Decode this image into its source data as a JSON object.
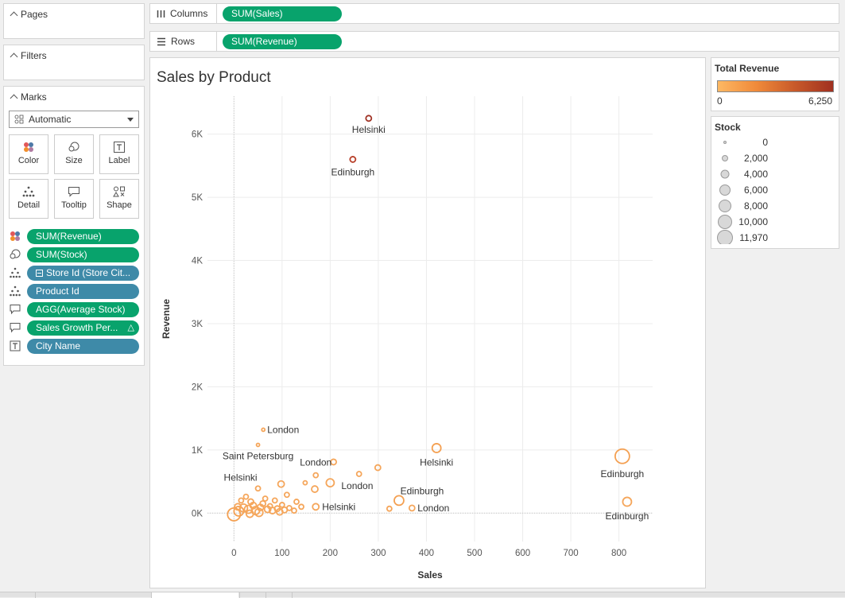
{
  "left_panel": {
    "pages_title": "Pages",
    "filters_title": "Filters",
    "marks_title": "Marks",
    "mark_type": "Automatic",
    "buttons": {
      "color": "Color",
      "size": "Size",
      "label": "Label",
      "detail": "Detail",
      "tooltip": "Tooltip",
      "shape": "Shape"
    },
    "pills": [
      {
        "icon": "color-icon",
        "text": "SUM(Revenue)",
        "kind": "green"
      },
      {
        "icon": "size-icon",
        "text": "SUM(Stock)",
        "kind": "green"
      },
      {
        "icon": "detail-icon",
        "text": "Store Id (Store Cit...",
        "kind": "blue"
      },
      {
        "icon": "detail-icon",
        "text": "Product Id",
        "kind": "blue"
      },
      {
        "icon": "tooltip-icon",
        "text": "AGG(Average Stock)",
        "kind": "green"
      },
      {
        "icon": "tooltip-icon",
        "text": "Sales Growth Per...",
        "kind": "green"
      },
      {
        "icon": "label-icon",
        "text": "City Name",
        "kind": "blue"
      }
    ]
  },
  "shelves": {
    "columns_label": "Columns",
    "columns_pill": "SUM(Sales)",
    "rows_label": "Rows",
    "rows_pill": "SUM(Revenue)"
  },
  "colors": {
    "green_pill": "#08a36c",
    "blue_pill": "#3e8aa8",
    "low": "#fdb863",
    "high": "#a03020"
  },
  "chart_data": {
    "type": "scatter",
    "title": "Sales by Product",
    "xlabel": "Sales",
    "ylabel": "Revenue",
    "xlim": [
      -55,
      870
    ],
    "ylim": [
      -450,
      6600
    ],
    "xticks": [
      0,
      100,
      200,
      300,
      400,
      500,
      600,
      700,
      800
    ],
    "yticks": [
      0,
      1000,
      2000,
      3000,
      4000,
      5000,
      6000
    ],
    "ytick_labels": [
      "0K",
      "1K",
      "2K",
      "3K",
      "4K",
      "5K",
      "6K"
    ],
    "points": [
      {
        "x": 280,
        "y": 6250,
        "r": 3.5,
        "color": "#a03325",
        "label": "Helsinki"
      },
      {
        "x": 247,
        "y": 5600,
        "r": 3.5,
        "color": "#b8402a",
        "label": "Edinburgh"
      },
      {
        "x": 61,
        "y": 1320,
        "r": 2,
        "color": "#f5a65b",
        "label": "London"
      },
      {
        "x": 50,
        "y": 1080,
        "r": 2,
        "color": "#f5a65b",
        "label": "Saint Petersburg"
      },
      {
        "x": 421,
        "y": 1030,
        "r": 5.5,
        "color": "#f4a052",
        "label": "Helsinki"
      },
      {
        "x": 807,
        "y": 900,
        "r": 9,
        "color": "#f4a052",
        "label": "Edinburgh"
      },
      {
        "x": 207,
        "y": 810,
        "r": 3.5,
        "color": "#f5a65b",
        "label": ""
      },
      {
        "x": 299,
        "y": 720,
        "r": 3.5,
        "color": "#f5a65b",
        "label": ""
      },
      {
        "x": 260,
        "y": 620,
        "r": 3,
        "color": "#f5a65b",
        "label": ""
      },
      {
        "x": 170,
        "y": 600,
        "r": 3,
        "color": "#f5a65b",
        "label": "London"
      },
      {
        "x": 200,
        "y": 480,
        "r": 5,
        "color": "#f5a65b",
        "label": "London"
      },
      {
        "x": 148,
        "y": 480,
        "r": 2.5,
        "color": "#f5a65b",
        "label": ""
      },
      {
        "x": 98,
        "y": 460,
        "r": 4,
        "color": "#f5a65b",
        "label": ""
      },
      {
        "x": 168,
        "y": 380,
        "r": 4,
        "color": "#f5a65b",
        "label": ""
      },
      {
        "x": 50,
        "y": 390,
        "r": 3,
        "color": "#f5a65b",
        "label": "Helsinki"
      },
      {
        "x": 343,
        "y": 200,
        "r": 6,
        "color": "#f4a052",
        "label": "Edinburgh"
      },
      {
        "x": 817,
        "y": 180,
        "r": 5.5,
        "color": "#f5a65b",
        "label": "Edinburgh"
      },
      {
        "x": 170,
        "y": 100,
        "r": 4,
        "color": "#f5a65b",
        "label": "Helsinki"
      },
      {
        "x": 370,
        "y": 80,
        "r": 3.5,
        "color": "#f5a65b",
        "label": "London"
      },
      {
        "x": 323,
        "y": 70,
        "r": 3,
        "color": "#f5a65b",
        "label": ""
      },
      {
        "x": 110,
        "y": 290,
        "r": 3,
        "color": "#f5a65b",
        "label": ""
      },
      {
        "x": 85,
        "y": 200,
        "r": 3,
        "color": "#f5a65b",
        "label": ""
      },
      {
        "x": 130,
        "y": 180,
        "r": 3,
        "color": "#f5a65b",
        "label": ""
      },
      {
        "x": 140,
        "y": 100,
        "r": 3,
        "color": "#f5a65b",
        "label": ""
      },
      {
        "x": 0,
        "y": -20,
        "r": 8,
        "color": "#f4a052",
        "label": ""
      },
      {
        "x": 10,
        "y": 30,
        "r": 6,
        "color": "#f4a052",
        "label": ""
      },
      {
        "x": 20,
        "y": 80,
        "r": 5,
        "color": "#f5a65b",
        "label": ""
      },
      {
        "x": 30,
        "y": 60,
        "r": 5,
        "color": "#f5a65b",
        "label": ""
      },
      {
        "x": 40,
        "y": 120,
        "r": 4,
        "color": "#f5a65b",
        "label": ""
      },
      {
        "x": 45,
        "y": 40,
        "r": 5,
        "color": "#f5a65b",
        "label": ""
      },
      {
        "x": 55,
        "y": 90,
        "r": 4,
        "color": "#f5a65b",
        "label": ""
      },
      {
        "x": 60,
        "y": 150,
        "r": 3.5,
        "color": "#f5a65b",
        "label": ""
      },
      {
        "x": 70,
        "y": 60,
        "r": 4,
        "color": "#f5a65b",
        "label": ""
      },
      {
        "x": 75,
        "y": 110,
        "r": 3,
        "color": "#f5a65b",
        "label": ""
      },
      {
        "x": 80,
        "y": 40,
        "r": 4,
        "color": "#f5a65b",
        "label": ""
      },
      {
        "x": 90,
        "y": 70,
        "r": 3.5,
        "color": "#f5a65b",
        "label": ""
      },
      {
        "x": 95,
        "y": 20,
        "r": 4,
        "color": "#f5a65b",
        "label": ""
      },
      {
        "x": 105,
        "y": 50,
        "r": 3.5,
        "color": "#f5a65b",
        "label": ""
      },
      {
        "x": 115,
        "y": 80,
        "r": 3,
        "color": "#f5a65b",
        "label": ""
      },
      {
        "x": 125,
        "y": 40,
        "r": 3,
        "color": "#f5a65b",
        "label": ""
      },
      {
        "x": 15,
        "y": 200,
        "r": 3,
        "color": "#f5a65b",
        "label": ""
      },
      {
        "x": 25,
        "y": 260,
        "r": 3,
        "color": "#f5a65b",
        "label": ""
      },
      {
        "x": 35,
        "y": 180,
        "r": 3.5,
        "color": "#f5a65b",
        "label": ""
      },
      {
        "x": 65,
        "y": 230,
        "r": 3,
        "color": "#f5a65b",
        "label": ""
      },
      {
        "x": 8,
        "y": 100,
        "r": 4,
        "color": "#f5a65b",
        "label": ""
      },
      {
        "x": 52,
        "y": 10,
        "r": 5,
        "color": "#f5a65b",
        "label": ""
      },
      {
        "x": 33,
        "y": -10,
        "r": 4.5,
        "color": "#f5a65b",
        "label": ""
      },
      {
        "x": 100,
        "y": 130,
        "r": 3,
        "color": "#f5a65b",
        "label": ""
      }
    ]
  },
  "legend_color": {
    "title": "Total Revenue",
    "min_label": "0",
    "max_label": "6,250"
  },
  "legend_size": {
    "title": "Stock",
    "items": [
      {
        "label": "0",
        "r": 1.5
      },
      {
        "label": "2,000",
        "r": 3.5
      },
      {
        "label": "4,000",
        "r": 5
      },
      {
        "label": "6,000",
        "r": 6.5
      },
      {
        "label": "8,000",
        "r": 7.5
      },
      {
        "label": "10,000",
        "r": 8.5
      },
      {
        "label": "11,970",
        "r": 9.5
      }
    ]
  }
}
